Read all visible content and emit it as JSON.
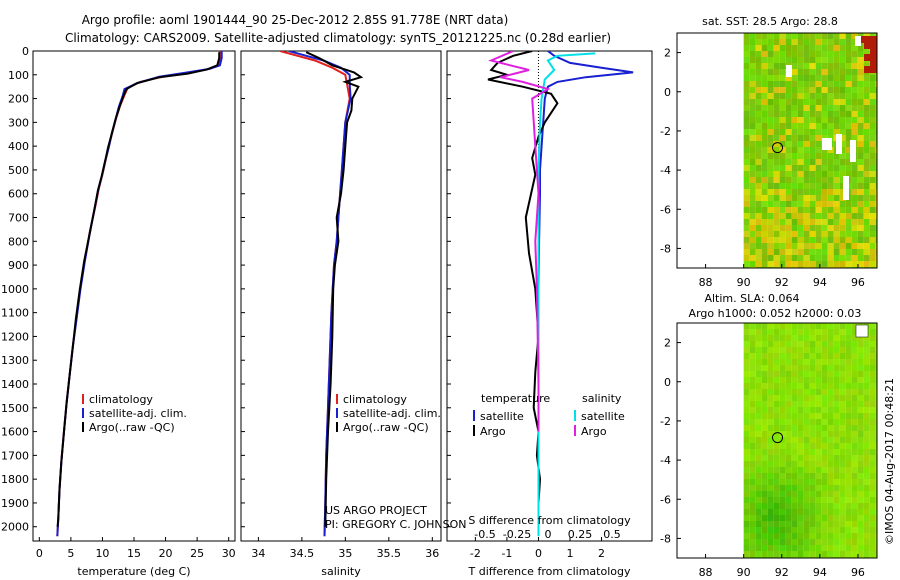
{
  "header": {
    "title_line1": "Argo profile: aoml 1901444_90 25-Dec-2012 2.85S 91.778E (NRT data)",
    "title_line2": "Climatology: CARS2009. Satellite-adjusted climatology: synTS_20121225.nc (0.28d earlier)"
  },
  "colors": {
    "climatology": "#e0201c",
    "satellite": "#1820d0",
    "argo": "#000000",
    "sat_salinity": "#00e0e8",
    "argo_salinity": "#e020e0"
  },
  "chart_data": [
    {
      "type": "line",
      "title": "",
      "xlabel": "temperature (deg C)",
      "ylabel": "",
      "xlim": [
        -1,
        31
      ],
      "ylim": [
        2060,
        0
      ],
      "xticks": [
        0,
        5,
        10,
        15,
        20,
        25,
        30
      ],
      "yticks": [
        0,
        100,
        200,
        300,
        400,
        500,
        600,
        700,
        800,
        900,
        1000,
        1100,
        1200,
        1300,
        1400,
        1500,
        1600,
        1700,
        1800,
        1900,
        2000
      ],
      "legend": [
        "climatology",
        "satellite-adj. clim.",
        "Argo(..raw -QC)"
      ],
      "series": [
        {
          "name": "climatology",
          "x": [
            28.6,
            28.6,
            28.4,
            27,
            24,
            20,
            16,
            14,
            13.5,
            12.8,
            12.2,
            11.6,
            11,
            10.5,
            10,
            9.4,
            8.9,
            8,
            7.2,
            6.5,
            5.9,
            5.3,
            4.8,
            4.3,
            3.9,
            3.5,
            3.2,
            3,
            2.85
          ],
          "y": [
            0,
            30,
            60,
            75,
            90,
            105,
            130,
            155,
            185,
            230,
            280,
            340,
            400,
            460,
            520,
            580,
            650,
            760,
            880,
            1000,
            1120,
            1240,
            1360,
            1480,
            1600,
            1720,
            1840,
            1960,
            2040
          ]
        },
        {
          "name": "satellite-adj. clim.",
          "x": [
            28.9,
            28.9,
            28.6,
            27,
            23,
            19,
            15.5,
            13.5,
            13.2,
            12.6,
            12.1,
            11.5,
            11,
            10.4,
            9.9,
            9.3,
            8.8,
            8,
            7.2,
            6.5,
            5.9,
            5.3,
            4.8,
            4.3,
            3.9,
            3.5,
            3.2,
            3,
            2.85
          ],
          "y": [
            0,
            30,
            60,
            75,
            92,
            108,
            135,
            160,
            190,
            235,
            285,
            345,
            405,
            465,
            525,
            585,
            655,
            765,
            885,
            1005,
            1125,
            1245,
            1365,
            1485,
            1605,
            1725,
            1845,
            1965,
            2040
          ]
        },
        {
          "name": "Argo(..raw -QC)",
          "x": [
            28.5,
            28.5,
            28.2,
            26.5,
            23.5,
            19,
            15.5,
            13.8,
            13.3,
            12.7,
            12.1,
            11.5,
            10.9,
            10.4,
            9.9,
            9.3,
            8.8,
            8,
            7.1,
            6.4,
            5.8,
            5.3,
            4.8,
            4.3,
            3.9,
            3.5,
            3.2,
            3,
            2.9
          ],
          "y": [
            5,
            30,
            60,
            78,
            95,
            110,
            135,
            160,
            190,
            235,
            285,
            345,
            405,
            465,
            525,
            585,
            655,
            765,
            885,
            1005,
            1125,
            1245,
            1365,
            1485,
            1605,
            1725,
            1845,
            1965,
            2000
          ]
        }
      ]
    },
    {
      "type": "line",
      "title": "",
      "xlabel": "salinity",
      "ylabel": "",
      "xlim": [
        33.8,
        36.1
      ],
      "ylim": [
        2060,
        0
      ],
      "xticks": [
        34,
        34.5,
        35,
        35.5,
        36
      ],
      "legend": [
        "climatology",
        "satellite-adj. clim.",
        "Argo(..raw -QC)"
      ],
      "annotations": [
        "US ARGO PROJECT",
        "PI: GREGORY C. JOHNSON"
      ],
      "series": [
        {
          "name": "climatology",
          "x": [
            34.25,
            34.45,
            34.65,
            34.85,
            35.0,
            35.02,
            35.05,
            35.0,
            34.98,
            34.96,
            34.94,
            34.92,
            34.9,
            34.87,
            34.84,
            34.82,
            34.8,
            34.78,
            34.77,
            34.76
          ],
          "y": [
            0,
            20,
            40,
            70,
            100,
            140,
            200,
            300,
            400,
            500,
            600,
            700,
            800,
            900,
            1100,
            1300,
            1500,
            1700,
            1900,
            2040
          ]
        },
        {
          "name": "satellite-adj. clim.",
          "x": [
            34.35,
            34.55,
            34.75,
            34.95,
            35.05,
            35.05,
            35.06,
            35.0,
            34.98,
            34.96,
            34.94,
            34.92,
            34.9,
            34.87,
            34.84,
            34.82,
            34.8,
            34.78,
            34.77,
            34.76
          ],
          "y": [
            0,
            20,
            40,
            70,
            100,
            140,
            200,
            300,
            400,
            500,
            600,
            700,
            800,
            900,
            1100,
            1300,
            1500,
            1700,
            1900,
            2040
          ]
        },
        {
          "name": "Argo(..raw -QC)",
          "x": [
            34.55,
            34.7,
            34.85,
            35.1,
            35.18,
            35.0,
            35.15,
            35.08,
            35.07,
            35.02,
            35.0,
            34.98,
            34.95,
            34.9,
            34.92,
            34.88,
            34.86,
            34.85,
            34.83,
            34.8,
            34.78,
            34.77
          ],
          "y": [
            5,
            30,
            60,
            90,
            110,
            130,
            150,
            200,
            250,
            300,
            400,
            500,
            600,
            700,
            800,
            900,
            1000,
            1200,
            1400,
            1600,
            1800,
            2000
          ]
        }
      ]
    },
    {
      "type": "line",
      "title": "",
      "xlabel": "T difference from climatology",
      "ylabel": "",
      "xlim": [
        -2.9,
        3.6
      ],
      "ylim": [
        2060,
        0
      ],
      "xticks": [
        -2,
        -1,
        0,
        1,
        2
      ],
      "secondary_xlabel": "S difference from climatology",
      "secondary_xticks": [
        "-0.5",
        "-0.25",
        "0",
        "0.25",
        "0.5"
      ],
      "legend": [
        "temperature satellite",
        "temperature Argo",
        "salinity satellite",
        "salinity Argo"
      ],
      "legend_headers": [
        "temperature",
        "salinity"
      ],
      "legend_items": [
        "satellite",
        "Argo"
      ],
      "series": [
        {
          "name": "temperature satellite",
          "x": [
            0.3,
            0.5,
            1.0,
            2.0,
            3.0,
            1.5,
            0.6,
            0.3,
            0.2,
            0.15,
            0.1,
            0.05,
            0.05,
            0.02,
            0,
            0,
            0,
            0,
            0,
            0
          ],
          "y": [
            0,
            20,
            50,
            70,
            90,
            110,
            130,
            150,
            200,
            300,
            400,
            500,
            600,
            800,
            1000,
            1200,
            1400,
            1600,
            1800,
            2000
          ]
        },
        {
          "name": "temperature Argo",
          "x": [
            -0.2,
            -0.8,
            -1.3,
            -1.5,
            -1.0,
            -1.6,
            -0.5,
            0.4,
            0.6,
            0.2,
            0,
            -0.2,
            -0.1,
            -0.4,
            -0.3,
            -0.1,
            0,
            -0.1,
            -0.15,
            0,
            -0.05,
            0.05,
            0
          ],
          "y": [
            0,
            20,
            50,
            80,
            100,
            120,
            150,
            180,
            220,
            300,
            360,
            450,
            520,
            700,
            850,
            1000,
            1200,
            1350,
            1500,
            1600,
            1700,
            1800,
            1900
          ]
        },
        {
          "name": "salinity satellite",
          "x": [
            1.8,
            0.6,
            0.3,
            0.5,
            0.2,
            0.1,
            0.05,
            0,
            0,
            0,
            0,
            0
          ],
          "y": [
            10,
            20,
            40,
            80,
            120,
            200,
            300,
            500,
            800,
            1200,
            1600,
            2040
          ]
        },
        {
          "name": "salinity Argo",
          "x": [
            -0.8,
            -1.5,
            -0.3,
            -1.2,
            -0.5,
            0.3,
            -0.2,
            -0.1,
            0,
            -0.1,
            -0.05,
            0,
            0
          ],
          "y": [
            0,
            40,
            80,
            110,
            130,
            160,
            200,
            400,
            600,
            800,
            1000,
            1400,
            1600
          ]
        }
      ]
    },
    {
      "type": "heatmap",
      "title": "sat. SST: 28.5 Argo: 28.8",
      "xlabel": "",
      "ylabel": "",
      "xlim": [
        86.5,
        97
      ],
      "ylim": [
        -9,
        3
      ],
      "xticks": [
        88,
        90,
        92,
        94,
        96
      ],
      "yticks": [
        -8,
        -6,
        -4,
        -2,
        0,
        2
      ],
      "marker": {
        "lon": 91.778,
        "lat": -2.85
      }
    },
    {
      "type": "heatmap",
      "title": "Altim. SLA: 0.064",
      "subtitle": "Argo h1000: 0.052 h2000: 0.03",
      "xlabel": "",
      "ylabel": "",
      "xlim": [
        86.5,
        97
      ],
      "ylim": [
        -9,
        3
      ],
      "xticks": [
        88,
        90,
        92,
        94,
        96
      ],
      "yticks": [
        -8,
        -6,
        -4,
        -2,
        0,
        2
      ],
      "marker": {
        "lon": 91.778,
        "lat": -2.85
      }
    }
  ],
  "footer": {
    "timestamp": "©IMOS 04-Aug-2017 00:48:21"
  }
}
